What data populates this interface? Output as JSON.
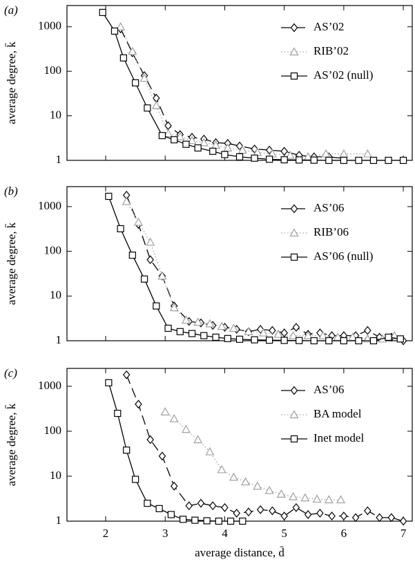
{
  "chart_data": [
    {
      "type": "line",
      "panel_label": "(a)",
      "ylabel": "average degree, k̄",
      "log_y": true,
      "xlim": [
        1.35,
        7.15
      ],
      "xticks": [
        2,
        3,
        4,
        5,
        6,
        7
      ],
      "ylim": [
        1,
        3000
      ],
      "yticks": [
        1,
        10,
        100,
        1000
      ],
      "legend": "upper right",
      "series": [
        {
          "name": "AS’02",
          "color": "#000000",
          "marker": "diamond",
          "dash": "long",
          "x": [
            2.25,
            2.45,
            2.65,
            2.85,
            3.05,
            3.25,
            3.45,
            3.65,
            3.85,
            4.05,
            4.25,
            4.5,
            4.75,
            5.0,
            5.25,
            5.5,
            5.75,
            6.0
          ],
          "values": [
            900,
            260,
            80,
            25,
            6,
            3.8,
            3.3,
            3,
            2.5,
            2.4,
            2.1,
            1.8,
            1.7,
            1.6,
            1.3,
            1.2,
            1.2,
            1.1
          ]
        },
        {
          "name": "RIB’02",
          "color": "#a0a0a0",
          "marker": "triangle",
          "dash": "dot",
          "x": [
            2.25,
            2.45,
            2.65,
            2.85,
            3.05,
            3.25,
            3.45,
            3.65,
            3.85,
            4.05,
            4.3,
            4.55,
            4.8,
            5.1,
            5.4,
            5.7,
            6.0,
            6.4
          ],
          "values": [
            1000,
            280,
            70,
            17,
            4,
            3.4,
            2.8,
            2.5,
            2.2,
            1.9,
            1.7,
            1.5,
            1.4,
            1.3,
            1.2,
            1.4,
            1.4,
            1.4
          ]
        },
        {
          "name": "AS’02 (null)",
          "color": "#000000",
          "marker": "square",
          "dash": "solid",
          "x": [
            1.95,
            2.15,
            2.3,
            2.5,
            2.7,
            2.95,
            3.15,
            3.35,
            3.55,
            3.8,
            4.0,
            4.25,
            4.5,
            4.75,
            5.0,
            5.25,
            5.5,
            5.75,
            6.0,
            6.25,
            6.5,
            6.75,
            7.0
          ],
          "values": [
            2100,
            800,
            200,
            55,
            15,
            3.6,
            2.9,
            2.3,
            1.9,
            1.6,
            1.35,
            1.2,
            1.12,
            1.06,
            1.03,
            1.02,
            1.01,
            1,
            1,
            1,
            1,
            1,
            1
          ]
        }
      ]
    },
    {
      "type": "line",
      "panel_label": "(b)",
      "ylabel": "average degree, k̄",
      "log_y": true,
      "xlim": [
        1.35,
        7.15
      ],
      "xticks": [
        2,
        3,
        4,
        5,
        6,
        7
      ],
      "ylim": [
        1,
        2800
      ],
      "yticks": [
        1,
        10,
        100,
        1000
      ],
      "legend": "upper right",
      "series": [
        {
          "name": "AS’06",
          "color": "#000000",
          "marker": "diamond",
          "dash": "long",
          "x": [
            2.35,
            2.55,
            2.75,
            2.95,
            3.15,
            3.4,
            3.6,
            3.8,
            4.0,
            4.2,
            4.4,
            4.6,
            4.8,
            5.0,
            5.2,
            5.4,
            5.6,
            5.8,
            6.0,
            6.2,
            6.4,
            6.6,
            6.8,
            7.0
          ],
          "values": [
            1800,
            400,
            65,
            28,
            6,
            2.7,
            2.5,
            2.2,
            2,
            1.8,
            1.6,
            1.8,
            1.7,
            1.5,
            2,
            1.4,
            1.5,
            1.3,
            1.3,
            1.3,
            1.7,
            1.2,
            1.2,
            1
          ]
        },
        {
          "name": "RIB’06",
          "color": "#a0a0a0",
          "marker": "triangle",
          "dash": "dot",
          "x": [
            2.35,
            2.55,
            2.75,
            2.95,
            3.15,
            3.35,
            3.55,
            3.75,
            3.95,
            4.15,
            4.4,
            4.65,
            4.9,
            5.15,
            5.4,
            5.65,
            5.9,
            6.15,
            6.4,
            6.65,
            6.85
          ],
          "values": [
            1300,
            450,
            160,
            28,
            5.5,
            2.9,
            2.6,
            2.4,
            2.1,
            1.9,
            1.6,
            1.5,
            1.4,
            1.3,
            1.3,
            1.3,
            1.2,
            1.2,
            1.1,
            1.1,
            1.3
          ]
        },
        {
          "name": "AS’06 (null)",
          "color": "#000000",
          "marker": "square",
          "dash": "solid",
          "x": [
            2.05,
            2.25,
            2.45,
            2.65,
            2.85,
            3.05,
            3.25,
            3.45,
            3.65,
            3.85,
            4.05,
            4.25,
            4.5,
            4.75,
            5.0,
            5.25,
            5.5,
            5.75,
            6.0,
            6.25,
            6.5,
            6.75,
            6.95
          ],
          "values": [
            1700,
            320,
            82,
            24,
            6,
            1.9,
            1.6,
            1.45,
            1.3,
            1.2,
            1.12,
            1.08,
            1.05,
            1.03,
            1.02,
            1.01,
            1,
            1,
            1,
            1,
            1,
            1.2,
            1.1
          ]
        }
      ]
    },
    {
      "type": "line",
      "panel_label": "(c)",
      "ylabel": "average degree, k̄",
      "xlabel": "average distance, d̄",
      "log_y": true,
      "xlim": [
        1.35,
        7.15
      ],
      "xticks": [
        2,
        3,
        4,
        5,
        6,
        7
      ],
      "ylim": [
        1,
        2500
      ],
      "yticks": [
        1,
        10,
        100,
        1000
      ],
      "legend": "upper right",
      "series": [
        {
          "name": "AS’06",
          "color": "#000000",
          "marker": "diamond",
          "dash": "long",
          "x": [
            2.35,
            2.55,
            2.75,
            2.95,
            3.15,
            3.4,
            3.6,
            3.8,
            4.0,
            4.2,
            4.4,
            4.6,
            4.8,
            5.0,
            5.2,
            5.4,
            5.6,
            5.8,
            6.0,
            6.2,
            6.4,
            6.6,
            6.8,
            7.0
          ],
          "values": [
            1800,
            400,
            65,
            28,
            6,
            2.2,
            2.5,
            2.2,
            2,
            1.5,
            1.6,
            1.8,
            1.7,
            1.3,
            2,
            1.4,
            1.5,
            1.3,
            1.3,
            1.2,
            1.7,
            1.2,
            1.2,
            1
          ]
        },
        {
          "name": "BA model",
          "color": "#a0a0a0",
          "marker": "triangle",
          "dash": "dot",
          "x": [
            3.0,
            3.15,
            3.35,
            3.55,
            3.75,
            3.95,
            4.15,
            4.35,
            4.55,
            4.75,
            4.95,
            5.15,
            5.35,
            5.55,
            5.75,
            5.95
          ],
          "values": [
            270,
            190,
            110,
            65,
            35,
            14,
            9.5,
            7.5,
            6,
            4.8,
            4,
            3.5,
            3.3,
            3.1,
            3,
            3
          ]
        },
        {
          "name": "Inet model",
          "color": "#000000",
          "marker": "square",
          "dash": "solid",
          "x": [
            2.05,
            2.2,
            2.35,
            2.5,
            2.7,
            2.9,
            3.1,
            3.3,
            3.5,
            3.7,
            3.9,
            4.1,
            4.3
          ],
          "values": [
            1200,
            250,
            38,
            8.5,
            2.5,
            1.9,
            1.4,
            1.1,
            1.05,
            1.02,
            1,
            1,
            1
          ]
        }
      ]
    }
  ]
}
